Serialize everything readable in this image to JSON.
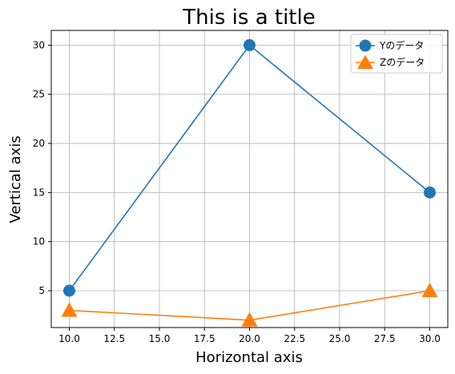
{
  "chart_data": {
    "type": "line",
    "title": "This is a title",
    "xlabel": "Horizontal axis",
    "ylabel": "Vertical axis",
    "x": [
      10,
      20,
      30
    ],
    "xlim": [
      9,
      31
    ],
    "ylim": [
      1.25,
      31.5
    ],
    "xticks": [
      "10.0",
      "12.5",
      "15.0",
      "17.5",
      "20.0",
      "22.5",
      "25.0",
      "27.5",
      "30.0"
    ],
    "yticks": [
      "5",
      "10",
      "15",
      "20",
      "25",
      "30"
    ],
    "grid": true,
    "legend_position": "top-right",
    "series": [
      {
        "name": "Yのデータ",
        "values": [
          5,
          30,
          15
        ],
        "color": "#1f77b4",
        "marker": "circle"
      },
      {
        "name": "Zのデータ",
        "values": [
          3,
          2,
          5
        ],
        "color": "#ff7f0e",
        "marker": "triangle"
      }
    ]
  }
}
